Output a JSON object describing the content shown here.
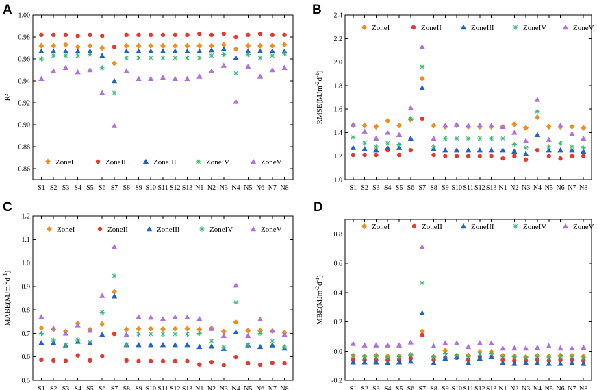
{
  "categories": [
    "S1",
    "S2",
    "S3",
    "S4",
    "S5",
    "S6",
    "S7",
    "S8",
    "S9",
    "S10",
    "S11",
    "S12",
    "S13",
    "N1",
    "N2",
    "N3",
    "N4",
    "N5",
    "N6",
    "N7",
    "N8"
  ],
  "series_styles": [
    {
      "name": "ZoneI",
      "color": "#f28c1d",
      "marker": "diamond"
    },
    {
      "name": "ZoneII",
      "color": "#e8372f",
      "marker": "circle"
    },
    {
      "name": "ZoneIII",
      "color": "#1f63c6",
      "marker": "triangle-up"
    },
    {
      "name": "ZoneIV",
      "color": "#34b870",
      "marker": "asterisk"
    },
    {
      "name": "ZoneV",
      "color": "#b071de",
      "marker": "triangle-up"
    }
  ],
  "chart_data": [
    {
      "panel": "A",
      "type": "scatter",
      "title": "",
      "xlabel": "",
      "ylabel": "R²",
      "ylim": [
        0.85,
        1.0
      ],
      "yticks": [
        "0.86",
        "0.88",
        "0.90",
        "0.92",
        "0.94",
        "0.96",
        "0.98",
        "1.00"
      ],
      "legend_position": "bottom",
      "categories": [
        "S1",
        "S2",
        "S3",
        "S4",
        "S5",
        "S6",
        "S7",
        "S8",
        "S9",
        "S10",
        "S11",
        "S12",
        "S13",
        "N1",
        "N2",
        "N3",
        "N4",
        "N5",
        "N6",
        "N7",
        "N8"
      ],
      "series": [
        {
          "name": "ZoneI",
          "values": [
            0.972,
            0.972,
            0.973,
            0.971,
            0.972,
            0.97,
            0.956,
            0.972,
            0.972,
            0.972,
            0.972,
            0.972,
            0.972,
            0.972,
            0.972,
            0.973,
            0.969,
            0.972,
            0.972,
            0.972,
            0.973
          ]
        },
        {
          "name": "ZoneII",
          "values": [
            0.982,
            0.982,
            0.982,
            0.981,
            0.982,
            0.981,
            0.971,
            0.982,
            0.982,
            0.982,
            0.982,
            0.982,
            0.982,
            0.983,
            0.982,
            0.983,
            0.98,
            0.982,
            0.983,
            0.982,
            0.982
          ]
        },
        {
          "name": "ZoneIII",
          "values": [
            0.967,
            0.967,
            0.967,
            0.967,
            0.967,
            0.963,
            0.94,
            0.967,
            0.967,
            0.967,
            0.967,
            0.967,
            0.967,
            0.967,
            0.968,
            0.969,
            0.961,
            0.967,
            0.967,
            0.967,
            0.967
          ]
        },
        {
          "name": "ZoneIV",
          "values": [
            0.96,
            0.963,
            0.963,
            0.963,
            0.964,
            0.952,
            0.929,
            0.961,
            0.961,
            0.961,
            0.961,
            0.961,
            0.961,
            0.961,
            0.963,
            0.964,
            0.947,
            0.964,
            0.961,
            0.963,
            0.965
          ]
        },
        {
          "name": "ZoneV",
          "values": [
            0.942,
            0.949,
            0.952,
            0.948,
            0.95,
            0.929,
            0.899,
            0.949,
            0.942,
            0.942,
            0.943,
            0.942,
            0.942,
            0.944,
            0.949,
            0.954,
            0.921,
            0.953,
            0.944,
            0.95,
            0.952
          ]
        }
      ]
    },
    {
      "panel": "B",
      "type": "scatter",
      "title": "",
      "xlabel": "",
      "ylabel": "RMSE(MJm-2d-1)",
      "ylabel_main": "RMSE(MJm",
      "ylabel_sup1": "-2",
      "ylabel_mid": "d",
      "ylabel_sup2": "-1",
      "ylabel_end": ")",
      "ylim": [
        1.0,
        2.4
      ],
      "yticks": [
        "1.0",
        "1.2",
        "1.4",
        "1.6",
        "1.8",
        "2.0",
        "2.2",
        "2.4"
      ],
      "legend_position": "top",
      "categories": [
        "S1",
        "S2",
        "S3",
        "S4",
        "S5",
        "S6",
        "S7",
        "S8",
        "S9",
        "S10",
        "S11",
        "S12",
        "S13",
        "N1",
        "N2",
        "N3",
        "N4",
        "N5",
        "N6",
        "N7",
        "N8"
      ],
      "series": [
        {
          "name": "ZoneI",
          "values": [
            1.46,
            1.46,
            1.45,
            1.5,
            1.46,
            1.51,
            1.86,
            1.46,
            1.45,
            1.46,
            1.45,
            1.45,
            1.45,
            1.45,
            1.47,
            1.44,
            1.53,
            1.45,
            1.45,
            1.45,
            1.44
          ]
        },
        {
          "name": "ZoneII",
          "values": [
            1.21,
            1.21,
            1.21,
            1.25,
            1.21,
            1.25,
            1.52,
            1.21,
            1.2,
            1.2,
            1.2,
            1.2,
            1.2,
            1.18,
            1.2,
            1.17,
            1.25,
            1.2,
            1.18,
            1.2,
            1.2
          ]
        },
        {
          "name": "ZoneIII",
          "values": [
            1.27,
            1.26,
            1.25,
            1.27,
            1.27,
            1.35,
            1.78,
            1.26,
            1.25,
            1.25,
            1.25,
            1.25,
            1.25,
            1.25,
            1.24,
            1.22,
            1.38,
            1.25,
            1.25,
            1.25,
            1.24
          ]
        },
        {
          "name": "ZoneIV",
          "values": [
            1.36,
            1.31,
            1.28,
            1.31,
            1.3,
            1.52,
            1.96,
            1.28,
            1.35,
            1.35,
            1.35,
            1.35,
            1.35,
            1.35,
            1.3,
            1.27,
            1.58,
            1.28,
            1.31,
            1.28,
            1.27
          ]
        },
        {
          "name": "ZoneV",
          "values": [
            1.47,
            1.41,
            1.35,
            1.4,
            1.38,
            1.61,
            2.13,
            1.35,
            1.46,
            1.47,
            1.46,
            1.46,
            1.46,
            1.45,
            1.4,
            1.33,
            1.68,
            1.34,
            1.46,
            1.39,
            1.35
          ]
        }
      ]
    },
    {
      "panel": "C",
      "type": "scatter",
      "title": "",
      "xlabel": "",
      "ylabel": "MABE(MJm-2d-1)",
      "ylabel_main": "MABE(MJm",
      "ylabel_sup1": "-2",
      "ylabel_mid": "d",
      "ylabel_sup2": "-1",
      "ylabel_end": ")",
      "ylim": [
        0.5,
        1.2
      ],
      "yticks": [
        "0.5",
        "0.6",
        "0.7",
        "0.8",
        "0.9",
        "1.0",
        "1.1",
        "1.2"
      ],
      "legend_position": "top",
      "categories": [
        "S1",
        "S2",
        "S3",
        "S4",
        "S5",
        "S6",
        "S7",
        "S8",
        "S9",
        "S10",
        "S11",
        "S12",
        "S13",
        "N1",
        "N2",
        "N3",
        "N4",
        "N5",
        "N6",
        "N7",
        "N8"
      ],
      "series": [
        {
          "name": "ZoneI",
          "values": [
            0.723,
            0.717,
            0.708,
            0.742,
            0.717,
            0.74,
            0.877,
            0.717,
            0.72,
            0.72,
            0.718,
            0.72,
            0.72,
            0.717,
            0.722,
            0.708,
            0.748,
            0.712,
            0.712,
            0.71,
            0.703
          ]
        },
        {
          "name": "ZoneII",
          "values": [
            0.588,
            0.585,
            0.583,
            0.606,
            0.585,
            0.603,
            0.698,
            0.585,
            0.582,
            0.582,
            0.582,
            0.582,
            0.582,
            0.568,
            0.578,
            0.565,
            0.599,
            0.573,
            0.567,
            0.575,
            0.573
          ]
        },
        {
          "name": "ZoneIII",
          "values": [
            0.66,
            0.66,
            0.65,
            0.665,
            0.66,
            0.695,
            0.858,
            0.651,
            0.651,
            0.651,
            0.651,
            0.651,
            0.651,
            0.643,
            0.645,
            0.635,
            0.705,
            0.65,
            0.643,
            0.65,
            0.637
          ]
        },
        {
          "name": "ZoneIV",
          "values": [
            0.7,
            0.672,
            0.65,
            0.672,
            0.664,
            0.79,
            0.945,
            0.65,
            0.697,
            0.697,
            0.697,
            0.697,
            0.697,
            0.7,
            0.668,
            0.64,
            0.832,
            0.65,
            0.7,
            0.668,
            0.643
          ]
        },
        {
          "name": "ZoneV",
          "values": [
            0.77,
            0.722,
            0.7,
            0.735,
            0.712,
            0.86,
            1.068,
            0.695,
            0.77,
            0.768,
            0.762,
            0.769,
            0.769,
            0.762,
            0.72,
            0.69,
            0.905,
            0.69,
            0.76,
            0.712,
            0.695
          ]
        }
      ]
    },
    {
      "panel": "D",
      "type": "scatter",
      "title": "",
      "xlabel": "",
      "ylabel": "MBE(MJm-2d-1)",
      "ylabel_main": "MBE(MJm",
      "ylabel_sup1": "-2",
      "ylabel_mid": "d",
      "ylabel_sup2": "-1",
      "ylabel_end": ")",
      "ylim": [
        -0.2,
        0.9
      ],
      "yticks": [
        "-0.2",
        "0.0",
        "0.2",
        "0.4",
        "0.6",
        "0.8"
      ],
      "legend_position": "top",
      "categories": [
        "S1",
        "S2",
        "S3",
        "S4",
        "S5",
        "S6",
        "S7",
        "S8",
        "S9",
        "S10",
        "S11",
        "S12",
        "S13",
        "N1",
        "N2",
        "N3",
        "N4",
        "N5",
        "N6",
        "N7",
        "N8"
      ],
      "series": [
        {
          "name": "ZoneI",
          "values": [
            -0.03,
            -0.035,
            -0.03,
            -0.035,
            -0.035,
            -0.03,
            0.135,
            -0.04,
            0.005,
            -0.03,
            -0.03,
            -0.005,
            -0.005,
            -0.03,
            -0.035,
            -0.04,
            -0.03,
            -0.035,
            -0.03,
            -0.03,
            -0.035
          ]
        },
        {
          "name": "ZoneII",
          "values": [
            -0.06,
            -0.06,
            -0.06,
            -0.06,
            -0.06,
            -0.05,
            0.11,
            -0.06,
            -0.045,
            -0.045,
            -0.06,
            -0.04,
            -0.04,
            -0.06,
            -0.065,
            -0.065,
            -0.06,
            -0.065,
            -0.06,
            -0.06,
            -0.065
          ]
        },
        {
          "name": "ZoneIII",
          "values": [
            -0.075,
            -0.075,
            -0.075,
            -0.08,
            -0.075,
            -0.07,
            0.26,
            -0.08,
            -0.05,
            -0.04,
            -0.08,
            -0.05,
            -0.04,
            -0.08,
            -0.085,
            -0.08,
            -0.08,
            -0.085,
            -0.085,
            -0.08,
            -0.085
          ]
        },
        {
          "name": "ZoneIV",
          "values": [
            -0.035,
            -0.04,
            -0.04,
            -0.045,
            -0.04,
            -0.025,
            0.465,
            -0.04,
            -0.015,
            -0.03,
            -0.04,
            -0.02,
            -0.015,
            -0.04,
            -0.04,
            -0.045,
            -0.04,
            -0.045,
            -0.04,
            -0.04,
            -0.045
          ]
        },
        {
          "name": "ZoneV",
          "values": [
            0.05,
            0.04,
            0.04,
            0.04,
            0.04,
            0.06,
            0.71,
            0.035,
            0.055,
            0.055,
            0.03,
            0.055,
            0.055,
            0.02,
            0.02,
            0.02,
            0.025,
            0.035,
            0.02,
            0.02,
            0.025
          ]
        }
      ]
    }
  ]
}
